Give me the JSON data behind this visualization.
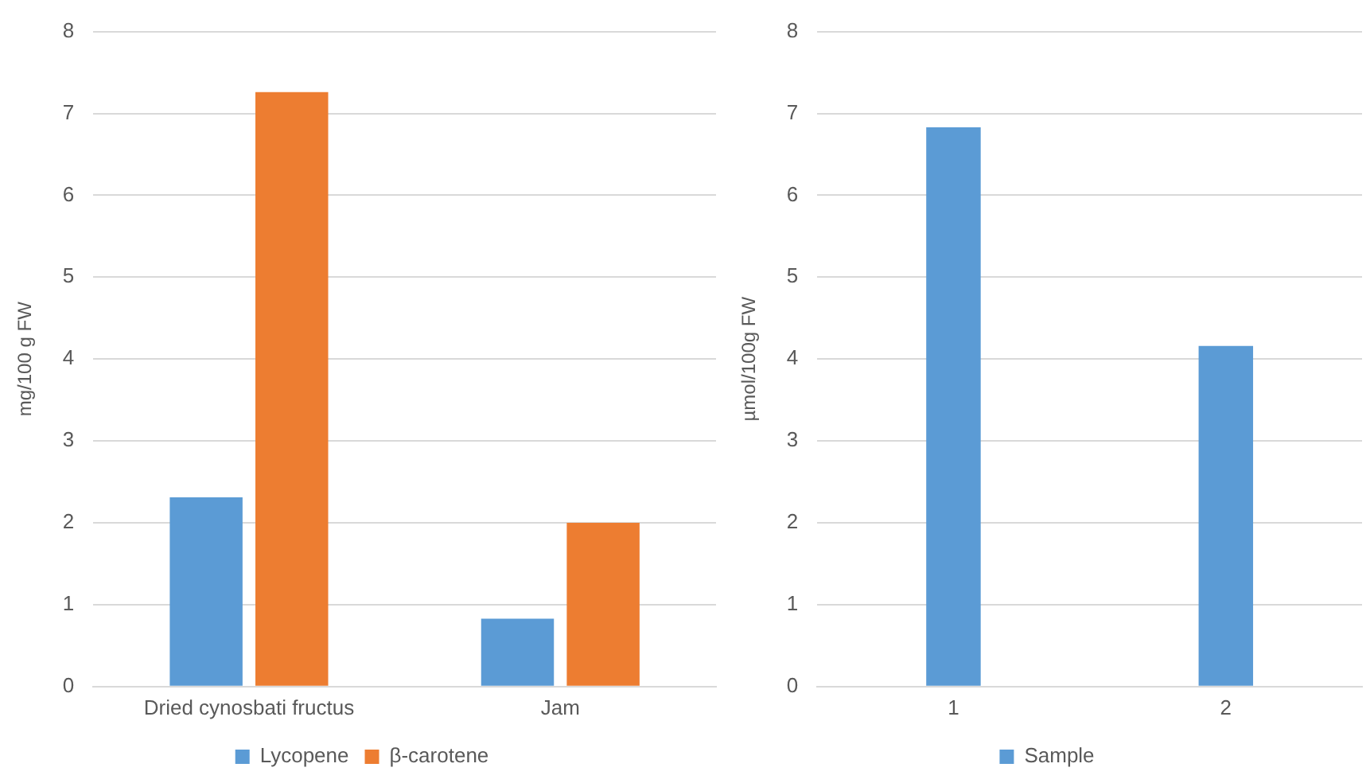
{
  "chart_data": [
    {
      "type": "bar",
      "ylabel": "mg/100 g FW",
      "categories": [
        "Dried cynosbati fructus",
        "Jam"
      ],
      "series": [
        {
          "name": "Lycopene",
          "color": "#5b9bd5",
          "values": [
            2.31,
            0.83
          ]
        },
        {
          "name": "β-carotene",
          "color": "#ed7d31",
          "values": [
            7.26,
            2.0
          ]
        }
      ],
      "ylim": [
        0,
        8
      ],
      "yticks": [
        0,
        1,
        2,
        3,
        4,
        5,
        6,
        7,
        8
      ],
      "grid": "y",
      "legend": "bottom"
    },
    {
      "type": "bar",
      "ylabel": "µmol/100g FW",
      "categories": [
        "1",
        "2"
      ],
      "series": [
        {
          "name": "Sample",
          "color": "#5b9bd5",
          "values": [
            6.83,
            4.16
          ]
        }
      ],
      "ylim": [
        0,
        8
      ],
      "yticks": [
        0,
        1,
        2,
        3,
        4,
        5,
        6,
        7,
        8
      ],
      "grid": "y",
      "legend": "bottom"
    }
  ]
}
